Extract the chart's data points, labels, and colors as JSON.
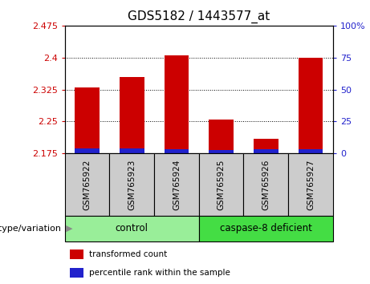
{
  "title": "GDS5182 / 1443577_at",
  "samples": [
    "GSM765922",
    "GSM765923",
    "GSM765924",
    "GSM765925",
    "GSM765926",
    "GSM765927"
  ],
  "red_values": [
    2.33,
    2.355,
    2.405,
    2.255,
    2.21,
    2.4
  ],
  "blue_values": [
    2.187,
    2.187,
    2.184,
    2.183,
    2.184,
    2.184
  ],
  "base": 2.175,
  "ylim_left": [
    2.175,
    2.475
  ],
  "ylim_right": [
    0,
    100
  ],
  "yticks_left": [
    2.175,
    2.25,
    2.325,
    2.4,
    2.475
  ],
  "ytick_labels_left": [
    "2.175",
    "2.25",
    "2.325",
    "2.4",
    "2.475"
  ],
  "yticks_right": [
    0,
    25,
    50,
    75,
    100
  ],
  "ytick_labels_right": [
    "0",
    "25",
    "50",
    "75",
    "100%"
  ],
  "gridlines_at": [
    2.25,
    2.325,
    2.4
  ],
  "groups": [
    {
      "label": "control",
      "span": [
        0,
        2
      ],
      "color": "#99ee99"
    },
    {
      "label": "caspase-8 deficient",
      "span": [
        3,
        5
      ],
      "color": "#44dd44"
    }
  ],
  "group_label_prefix": "genotype/variation",
  "legend_items": [
    {
      "label": "transformed count",
      "color": "#cc0000"
    },
    {
      "label": "percentile rank within the sample",
      "color": "#2222cc"
    }
  ],
  "bar_width": 0.55,
  "red_color": "#cc0000",
  "blue_color": "#2222cc",
  "axis_left_color": "#cc0000",
  "axis_right_color": "#2222cc",
  "sample_box_color": "#cccccc",
  "plot_bg": "#ffffff"
}
